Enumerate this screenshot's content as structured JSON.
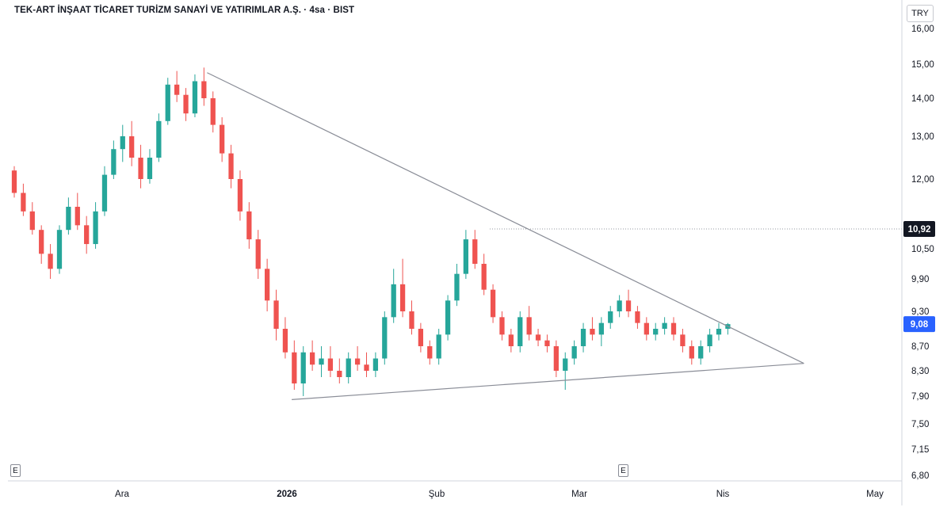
{
  "header": {
    "title": "TEK-ART İNŞAAT TİCARET TURİZM SANAYİ VE YATIRIMLAR A.Ş. · 4sa · BIST",
    "currency": "TRY"
  },
  "events": {
    "marker_label": "E"
  },
  "chart_data": {
    "type": "candlestick",
    "symbol": "TEK-ART İNŞAAT TİCARET TURİZM SANAYİ VE YATIRIMLAR A.Ş.",
    "interval": "4sa",
    "exchange": "BIST",
    "currency": "TRY",
    "y_scale": "log",
    "ylim": [
      6.8,
      16.0
    ],
    "y_ticks": [
      16.0,
      15.0,
      14.0,
      13.0,
      12.0,
      10.5,
      9.9,
      9.3,
      8.7,
      8.3,
      7.9,
      7.5,
      7.15,
      6.8
    ],
    "y_tick_labels": [
      "16,00",
      "15,00",
      "14,00",
      "13,00",
      "12,00",
      "10,50",
      "9,90",
      "9,30",
      "8,70",
      "8,30",
      "7,90",
      "7,50",
      "7,15",
      "6,80"
    ],
    "x_ticks": [
      {
        "label": "Ara",
        "date": "2025-12-01"
      },
      {
        "label": "2026",
        "date": "2026-01-01"
      },
      {
        "label": "Şub",
        "date": "2026-02-01"
      },
      {
        "label": "Mar",
        "date": "2026-03-01"
      },
      {
        "label": "Nis",
        "date": "2026-04-01"
      },
      {
        "label": "May",
        "date": "2026-05-01"
      }
    ],
    "x_range": [
      "2025-11-01",
      "2026-05-06"
    ],
    "candle_dates": [
      "2025-11-01",
      "2026-04-02"
    ],
    "series": [
      {
        "name": "",
        "values": [
          [
            12.2,
            12.3,
            11.6,
            11.7
          ],
          [
            11.7,
            11.9,
            11.2,
            11.3
          ],
          [
            11.3,
            11.5,
            10.8,
            10.9
          ],
          [
            10.9,
            11.0,
            10.2,
            10.4
          ],
          [
            10.4,
            10.6,
            9.9,
            10.1
          ],
          [
            10.1,
            11.0,
            10.0,
            10.9
          ],
          [
            10.9,
            11.6,
            10.8,
            11.4
          ],
          [
            11.4,
            11.7,
            10.9,
            11.0
          ],
          [
            11.0,
            11.2,
            10.4,
            10.6
          ],
          [
            10.6,
            11.5,
            10.5,
            11.3
          ],
          [
            11.3,
            12.3,
            11.2,
            12.1
          ],
          [
            12.1,
            12.9,
            12.0,
            12.7
          ],
          [
            12.7,
            13.3,
            12.4,
            13.0
          ],
          [
            13.0,
            13.4,
            12.3,
            12.5
          ],
          [
            12.5,
            12.8,
            11.8,
            12.0
          ],
          [
            12.0,
            12.7,
            11.9,
            12.5
          ],
          [
            12.5,
            13.6,
            12.4,
            13.4
          ],
          [
            13.4,
            14.6,
            13.3,
            14.4
          ],
          [
            14.4,
            14.8,
            13.9,
            14.1
          ],
          [
            14.1,
            14.3,
            13.4,
            13.6
          ],
          [
            13.6,
            14.7,
            13.5,
            14.5
          ],
          [
            14.5,
            14.9,
            13.8,
            14.0
          ],
          [
            14.0,
            14.2,
            13.1,
            13.3
          ],
          [
            13.3,
            13.5,
            12.4,
            12.6
          ],
          [
            12.6,
            12.8,
            11.8,
            12.0
          ],
          [
            12.0,
            12.2,
            11.1,
            11.3
          ],
          [
            11.3,
            11.5,
            10.5,
            10.7
          ],
          [
            10.7,
            10.9,
            9.9,
            10.1
          ],
          [
            10.1,
            10.3,
            9.3,
            9.5
          ],
          [
            9.5,
            9.7,
            8.8,
            9.0
          ],
          [
            9.0,
            9.2,
            8.5,
            8.6
          ],
          [
            8.6,
            8.8,
            8.0,
            8.1
          ],
          [
            8.1,
            8.7,
            7.9,
            8.6
          ],
          [
            8.6,
            8.8,
            8.3,
            8.4
          ],
          [
            8.4,
            8.7,
            8.2,
            8.5
          ],
          [
            8.5,
            8.7,
            8.2,
            8.3
          ],
          [
            8.3,
            8.5,
            8.1,
            8.2
          ],
          [
            8.2,
            8.6,
            8.1,
            8.5
          ],
          [
            8.5,
            8.7,
            8.3,
            8.4
          ],
          [
            8.4,
            8.6,
            8.2,
            8.3
          ],
          [
            8.3,
            8.6,
            8.2,
            8.5
          ],
          [
            8.5,
            9.3,
            8.4,
            9.2
          ],
          [
            9.2,
            10.1,
            9.1,
            9.8
          ],
          [
            9.8,
            10.3,
            9.2,
            9.3
          ],
          [
            9.3,
            9.5,
            8.9,
            9.0
          ],
          [
            9.0,
            9.1,
            8.6,
            8.7
          ],
          [
            8.7,
            8.8,
            8.4,
            8.5
          ],
          [
            8.5,
            9.0,
            8.4,
            8.9
          ],
          [
            8.9,
            9.6,
            8.8,
            9.5
          ],
          [
            9.5,
            10.2,
            9.4,
            10.0
          ],
          [
            10.0,
            10.9,
            9.9,
            10.7
          ],
          [
            10.7,
            10.9,
            10.1,
            10.2
          ],
          [
            10.2,
            10.4,
            9.6,
            9.7
          ],
          [
            9.7,
            9.8,
            9.1,
            9.2
          ],
          [
            9.2,
            9.3,
            8.8,
            8.9
          ],
          [
            8.9,
            9.0,
            8.6,
            8.7
          ],
          [
            8.7,
            9.3,
            8.6,
            9.2
          ],
          [
            9.2,
            9.4,
            8.8,
            8.9
          ],
          [
            8.9,
            9.0,
            8.7,
            8.8
          ],
          [
            8.8,
            8.9,
            8.6,
            8.7
          ],
          [
            8.7,
            8.8,
            8.2,
            8.3
          ],
          [
            8.3,
            8.6,
            8.0,
            8.5
          ],
          [
            8.5,
            8.8,
            8.4,
            8.7
          ],
          [
            8.7,
            9.1,
            8.6,
            9.0
          ],
          [
            9.0,
            9.2,
            8.8,
            8.9
          ],
          [
            8.9,
            9.2,
            8.7,
            9.1
          ],
          [
            9.1,
            9.4,
            9.0,
            9.3
          ],
          [
            9.3,
            9.6,
            9.2,
            9.5
          ],
          [
            9.5,
            9.7,
            9.2,
            9.3
          ],
          [
            9.3,
            9.4,
            9.0,
            9.1
          ],
          [
            9.1,
            9.2,
            8.8,
            8.9
          ],
          [
            8.9,
            9.1,
            8.8,
            9.0
          ],
          [
            9.0,
            9.2,
            8.9,
            9.1
          ],
          [
            9.1,
            9.2,
            8.8,
            8.9
          ],
          [
            8.9,
            9.0,
            8.6,
            8.7
          ],
          [
            8.7,
            8.8,
            8.4,
            8.5
          ],
          [
            8.5,
            8.8,
            8.4,
            8.7
          ],
          [
            8.7,
            9.0,
            8.6,
            8.9
          ],
          [
            8.9,
            9.1,
            8.8,
            9.0
          ],
          [
            9.0,
            9.1,
            8.9,
            9.08
          ]
        ]
      }
    ],
    "last_price": 9.08,
    "last_price_label": "9,08",
    "reference_price": 10.92,
    "reference_price_label": "10,92",
    "trendlines": [
      {
        "name": "",
        "from": {
          "date": "2025-12-17",
          "price": 14.75
        },
        "to": {
          "date": "2026-04-17",
          "price": 8.42
        }
      },
      {
        "name": "",
        "from": {
          "date": "2026-01-02",
          "price": 7.85
        },
        "to": {
          "date": "2026-04-17",
          "price": 8.42
        }
      }
    ],
    "event_marker_dates": [
      "2025-11-01",
      "2026-03-04"
    ],
    "colors": {
      "up": "#26a69a",
      "down": "#ef5350",
      "trendline": "#8a8d97",
      "last_price_bg": "#2962ff",
      "reference_bg": "#131722"
    },
    "grid": false,
    "legend": "none"
  }
}
